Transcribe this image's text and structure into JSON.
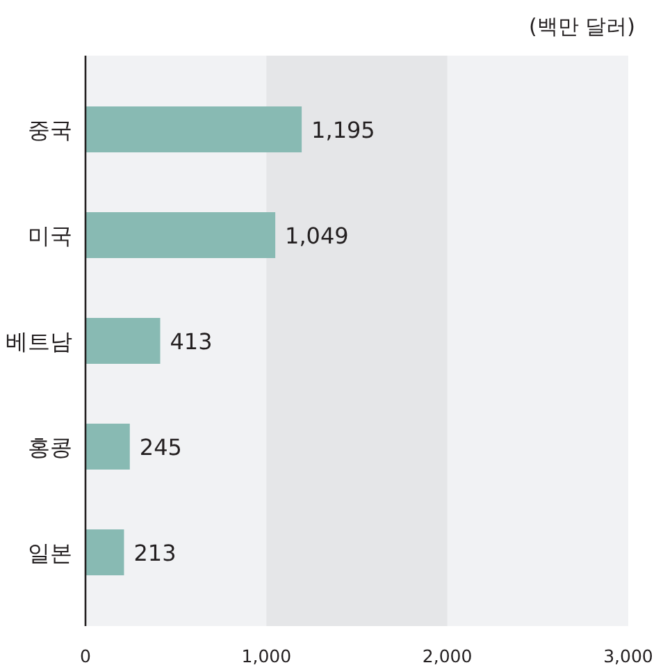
{
  "chart_data": {
    "type": "bar",
    "orientation": "horizontal",
    "categories": [
      "중국",
      "미국",
      "베트남",
      "홍콩",
      "일본"
    ],
    "values": [
      1195,
      1049,
      413,
      245,
      213
    ],
    "value_labels": [
      "1,195",
      "1,049",
      "413",
      "245",
      "213"
    ],
    "color": "#88bab3",
    "xlim": [
      0,
      3000
    ],
    "xticks": [
      0,
      {
        "value": 1000,
        "label": "1,000"
      },
      {
        "value": 2000,
        "label": "2,000"
      },
      {
        "value": 3000,
        "label": "3,000"
      }
    ],
    "bands": [
      {
        "axis": "x",
        "from": 1000,
        "to": 2000,
        "color": "#e5e6e8"
      }
    ],
    "annotations": [
      "(백만 달러)"
    ],
    "grid": false
  }
}
